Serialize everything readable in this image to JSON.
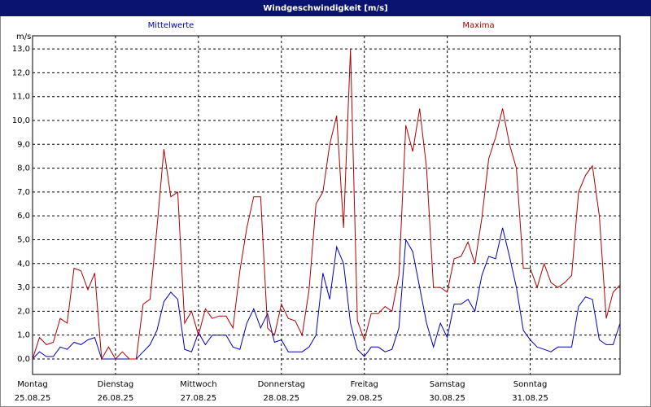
{
  "chart_data": {
    "type": "line",
    "title": "Windgeschwindigkeit [m/s]",
    "y_label": "m/s",
    "x": [
      0,
      2,
      4,
      6,
      8,
      10,
      12,
      14,
      16,
      18,
      20,
      22,
      24,
      26,
      28,
      30,
      32,
      34,
      36,
      38,
      40,
      42,
      44,
      46,
      48,
      50,
      52,
      54,
      56,
      58,
      60,
      62,
      64,
      66,
      68,
      70,
      72,
      74,
      76,
      78,
      80,
      82,
      84,
      86,
      88,
      90,
      92,
      94,
      96,
      98,
      100,
      102,
      104,
      106,
      108,
      110,
      112,
      114,
      116,
      118,
      120,
      122,
      124,
      126,
      128,
      130,
      132,
      134,
      136,
      138,
      140,
      142,
      144,
      146,
      148,
      150,
      152,
      154,
      156,
      158,
      160,
      162,
      164,
      166,
      168,
      170
    ],
    "xlim": [
      0,
      170
    ],
    "xticks": [
      {
        "value": 0,
        "label": "Montag",
        "date": "25.08.25"
      },
      {
        "value": 24,
        "label": "Dienstag",
        "date": "26.08.25"
      },
      {
        "value": 48,
        "label": "Mittwoch",
        "date": "27.08.25"
      },
      {
        "value": 72,
        "label": "Donnerstag",
        "date": "28.08.25"
      },
      {
        "value": 96,
        "label": "Freitag",
        "date": "29.08.25"
      },
      {
        "value": 120,
        "label": "Samstag",
        "date": "30.08.25"
      },
      {
        "value": 144,
        "label": "Sonntag",
        "date": "31.08.25"
      }
    ],
    "ylim": [
      -0.65,
      13.55
    ],
    "yticks": [
      {
        "value": 0,
        "label": "0,0"
      },
      {
        "value": 1,
        "label": "1,0"
      },
      {
        "value": 2,
        "label": "2,0"
      },
      {
        "value": 3,
        "label": "3,0"
      },
      {
        "value": 4,
        "label": "4,0"
      },
      {
        "value": 5,
        "label": "5,0"
      },
      {
        "value": 6,
        "label": "6,0"
      },
      {
        "value": 7,
        "label": "7,0"
      },
      {
        "value": 8,
        "label": "8,0"
      },
      {
        "value": 9,
        "label": "9,0"
      },
      {
        "value": 10,
        "label": "10,0"
      },
      {
        "value": 11,
        "label": "11,0"
      },
      {
        "value": 12,
        "label": "12,0"
      },
      {
        "value": 13,
        "label": "13,0"
      }
    ],
    "grid": true,
    "series": [
      {
        "name": "Mittelwerte",
        "color": "#0000c0",
        "values": [
          0.0,
          0.3,
          0.1,
          0.1,
          0.5,
          0.4,
          0.7,
          0.6,
          0.8,
          0.9,
          0.0,
          0.0,
          0.0,
          0.0,
          0.0,
          0.0,
          0.3,
          0.6,
          1.2,
          2.4,
          2.8,
          2.5,
          0.4,
          0.3,
          1.1,
          0.6,
          1.0,
          1.0,
          1.0,
          0.5,
          0.4,
          1.5,
          2.1,
          1.3,
          1.9,
          0.7,
          0.8,
          0.3,
          0.3,
          0.3,
          0.5,
          1.0,
          3.6,
          2.5,
          4.7,
          4.0,
          1.5,
          0.4,
          0.1,
          0.5,
          0.5,
          0.3,
          0.4,
          1.3,
          5.0,
          4.5,
          3.0,
          1.5,
          0.5,
          1.5,
          0.9,
          2.3,
          2.3,
          2.5,
          2.0,
          3.5,
          4.3,
          4.2,
          5.5,
          4.3,
          3.0,
          1.2,
          0.8,
          0.5,
          0.4,
          0.3,
          0.5,
          0.5,
          0.5,
          2.2,
          2.6,
          2.5,
          0.8,
          0.6,
          0.6,
          1.5
        ]
      },
      {
        "name": "Maxima",
        "color": "#b00000",
        "values": [
          0.0,
          0.9,
          0.6,
          0.7,
          1.7,
          1.5,
          3.8,
          3.7,
          2.9,
          3.6,
          0.0,
          0.5,
          0.0,
          0.3,
          0.0,
          0.0,
          2.3,
          2.5,
          5.5,
          8.8,
          6.8,
          7.0,
          1.5,
          2.0,
          1.0,
          2.1,
          1.7,
          1.8,
          1.8,
          1.3,
          3.7,
          5.5,
          6.8,
          6.8,
          1.3,
          1.0,
          2.3,
          1.7,
          1.6,
          1.0,
          2.9,
          6.5,
          7.0,
          9.0,
          10.2,
          5.5,
          13.0,
          1.6,
          0.8,
          1.9,
          1.9,
          2.2,
          2.0,
          3.5,
          9.8,
          8.7,
          10.5,
          8.0,
          3.0,
          3.0,
          2.8,
          4.2,
          4.3,
          4.9,
          4.0,
          5.9,
          8.4,
          9.3,
          10.5,
          9.0,
          8.0,
          3.8,
          3.8,
          3.0,
          4.0,
          3.2,
          3.0,
          3.2,
          3.5,
          7.0,
          7.7,
          8.1,
          6.0,
          1.7,
          2.8,
          3.1
        ]
      }
    ]
  }
}
